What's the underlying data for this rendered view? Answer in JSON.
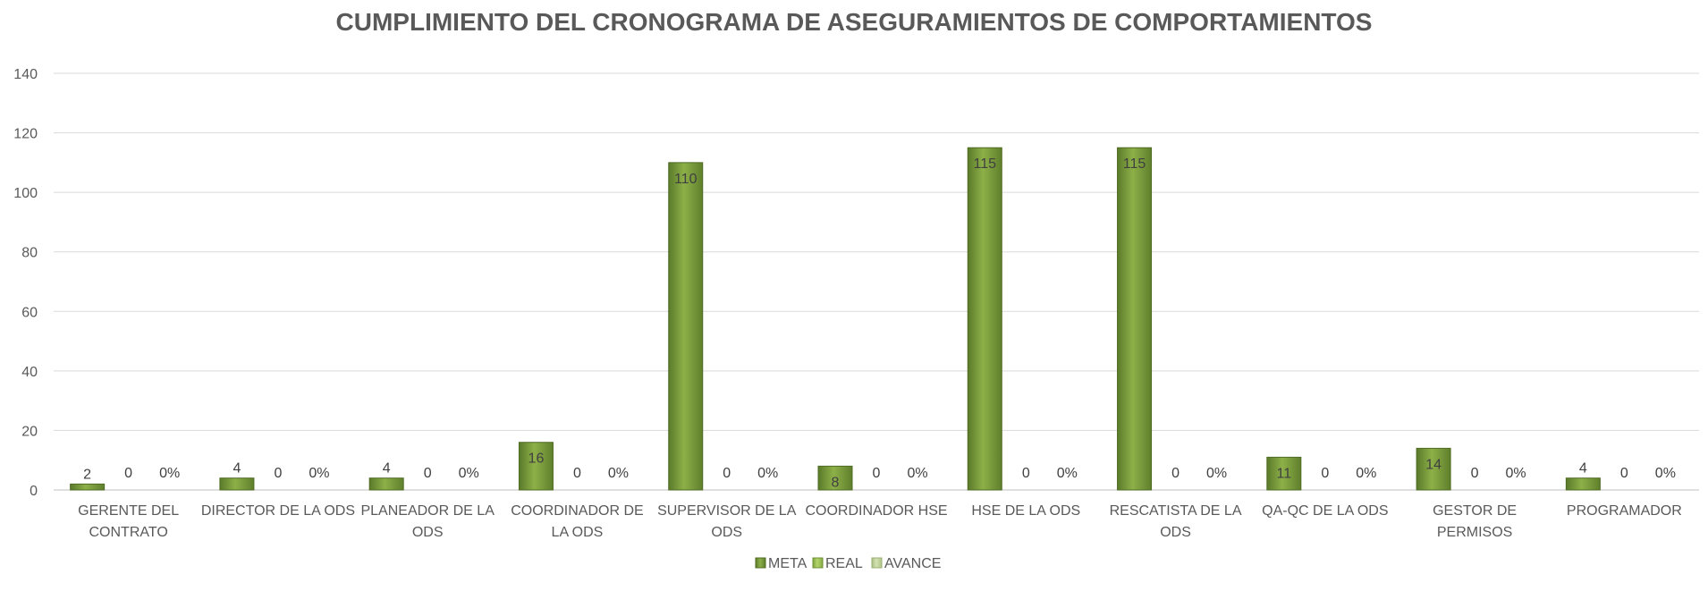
{
  "chart_data": {
    "type": "bar",
    "title": "CUMPLIMIENTO DEL CRONOGRAMA DE ASEGURAMIENTOS DE COMPORTAMIENTOS",
    "categories": [
      [
        "GERENTE DEL",
        "CONTRATO"
      ],
      [
        "DIRECTOR DE LA ODS"
      ],
      [
        "PLANEADOR DE LA",
        "ODS"
      ],
      [
        "COORDINADOR DE",
        "LA ODS"
      ],
      [
        "SUPERVISOR DE LA",
        "ODS"
      ],
      [
        "COORDINADOR HSE"
      ],
      [
        "HSE DE LA ODS"
      ],
      [
        "RESCATISTA DE LA",
        "ODS"
      ],
      [
        "QA-QC DE LA ODS"
      ],
      [
        "GESTOR DE",
        "PERMISOS"
      ],
      [
        "PROGRAMADOR"
      ]
    ],
    "series": [
      {
        "name": "META",
        "values": [
          2,
          4,
          4,
          16,
          110,
          8,
          115,
          115,
          11,
          14,
          4
        ],
        "labels": [
          "2",
          "4",
          "4",
          "16",
          "110",
          "8",
          "115",
          "115",
          "11",
          "14",
          "4"
        ],
        "color": "#76933c"
      },
      {
        "name": "REAL",
        "values": [
          0,
          0,
          0,
          0,
          0,
          0,
          0,
          0,
          0,
          0,
          0
        ],
        "labels": [
          "0",
          "0",
          "0",
          "0",
          "0",
          "0",
          "0",
          "0",
          "0",
          "0",
          "0"
        ],
        "color": "#9bbb59"
      },
      {
        "name": "AVANCE",
        "values": [
          0,
          0,
          0,
          0,
          0,
          0,
          0,
          0,
          0,
          0,
          0
        ],
        "labels": [
          "0%",
          "0%",
          "0%",
          "0%",
          "0%",
          "0%",
          "0%",
          "0%",
          "0%",
          "0%",
          "0%"
        ],
        "color": "#c3d69b"
      }
    ],
    "ylim": [
      0,
      140
    ],
    "yticks": [
      0,
      20,
      40,
      60,
      80,
      100,
      120,
      140
    ],
    "grid": true,
    "legend_position": "bottom-center"
  }
}
